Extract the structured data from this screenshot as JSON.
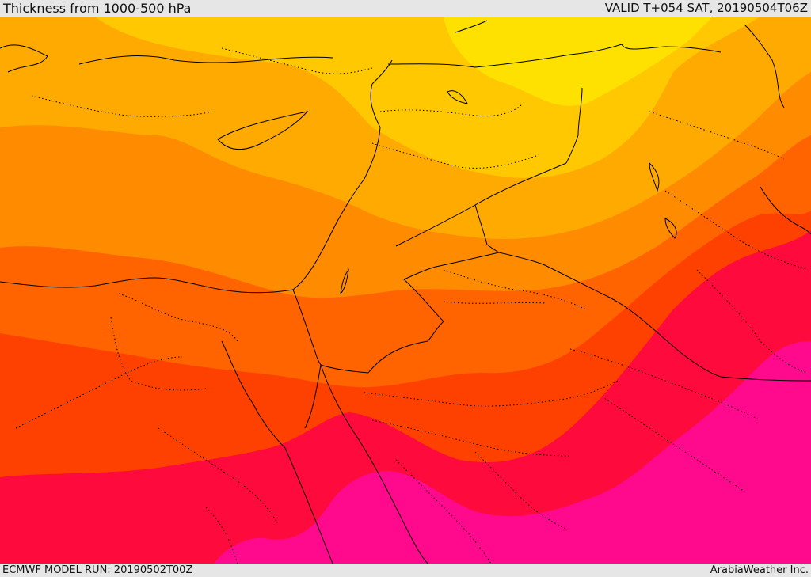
{
  "header": {
    "title": "Thickness from 1000-500 hPa",
    "valid": "VALID T+054 SAT, 20190504T06Z"
  },
  "footer": {
    "model_run": "ECMWF MODEL RUN: 20190502T00Z",
    "brand": "ArabiaWeather Inc."
  },
  "colors": {
    "band_1": "#ffe100",
    "band_2": "#ffc800",
    "band_3": "#ffaa00",
    "band_4": "#ff8c00",
    "band_5": "#ff6400",
    "band_6": "#ff4100",
    "band_7": "#ff0a3c",
    "band_8": "#ff0a8c",
    "border": "#000000"
  }
}
